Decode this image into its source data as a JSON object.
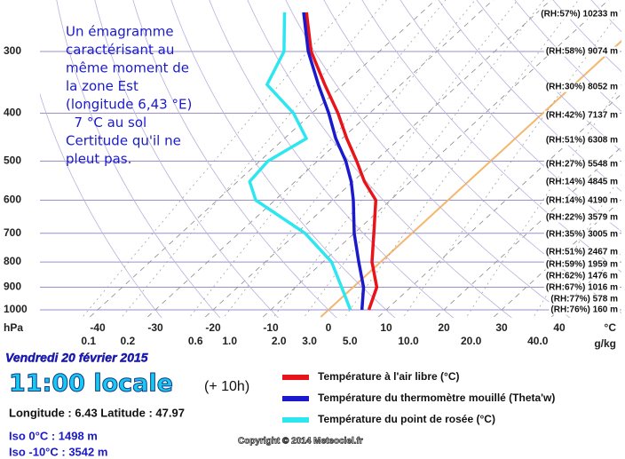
{
  "chart_data": {
    "type": "skewt",
    "ylabel": "hPa",
    "xlabel": "°C",
    "x2label": "g/kg",
    "y_scale": "log",
    "ylim": [
      1000,
      236
    ],
    "yticks": [
      300,
      400,
      500,
      600,
      700,
      800,
      900,
      1000
    ],
    "xlim": [
      -50,
      50
    ],
    "xticks": [
      -40,
      -30,
      -20,
      -10,
      0,
      10,
      20,
      30,
      40
    ],
    "mixing_ratio_ticks": [
      0.1,
      0.2,
      0.6,
      {
        "value": 1,
        "label": "1.0"
      },
      {
        "value": 2,
        "label": "2.0"
      },
      {
        "value": 3,
        "label": "3.0"
      },
      {
        "value": 5,
        "label": "5.0"
      },
      {
        "value": 10,
        "label": "10.0"
      },
      {
        "value": 20,
        "label": "20.0"
      },
      {
        "value": 40,
        "label": "40.0"
      }
    ],
    "grid": true,
    "highlight_isotherm": {
      "value": 0,
      "color": "#f5b66e"
    },
    "levels": [
      1000,
      900,
      800,
      700,
      600,
      550,
      500,
      450,
      400,
      350,
      300,
      250
    ],
    "series": [
      {
        "name": "Température à l'air libre (°C)",
        "color": "#e8141a",
        "values": [
          7,
          4.1,
          -1.5,
          -6.6,
          -12.5,
          -18,
          -23.2,
          -29.2,
          -35.5,
          -43.2,
          -51.8,
          -60
        ]
      },
      {
        "name": "Température du thermomètre mouillé (Theta'w)",
        "color": "#1a1acc",
        "values": [
          5.8,
          1.8,
          -3.8,
          -10,
          -16.4,
          -20.3,
          -25.1,
          -31.1,
          -37.1,
          -44.3,
          -52.3,
          -60.5
        ]
      },
      {
        "name": "Température du point de rosée (°C)",
        "color": "#2ee6f0",
        "values": [
          3.8,
          -2,
          -8.5,
          -18.5,
          -33.3,
          -37.9,
          -38.6,
          -36.2,
          -43.2,
          -53.2,
          -56.5,
          -63.8
        ]
      }
    ],
    "level_labels": [
      "(RH:57%) 10233 m",
      "(RH:58%) 9074 m",
      "(RH:30%) 8052 m",
      "(RH:42%) 7137 m",
      "(RH:51%) 6308 m",
      "(RH:27%) 5548 m",
      "(RH:14%) 4845 m",
      "(RH:14%) 4190 m",
      "(RH:22%) 3579 m",
      "(RH:35%) 3005 m",
      "(RH:51%) 2467 m",
      "(RH:59%) 1959 m",
      "(RH:62%) 1476 m",
      "(RH:67%) 1016 m",
      "(RH:77%) 578 m",
      "(RH:76%) 160 m"
    ],
    "note": [
      "Un émagramme",
      "caractérisant au",
      "même moment de",
      "la zone Est",
      "(longitude 6,43 °E)",
      "  7 °C au sol",
      "Certitude qu'il ne",
      "pleut pas."
    ]
  },
  "info": {
    "date": "Vendredi 20 février 2015",
    "time": "11:00 locale",
    "offset": "(+ 10h)",
    "position": "Longitude : 6.43  Latitude : 47.97",
    "iso0": "Iso 0°C : 1498 m",
    "iso10": "Iso -10°C : 3542 m",
    "copyright": "Copyright © 2014 Meteociel.fr"
  }
}
